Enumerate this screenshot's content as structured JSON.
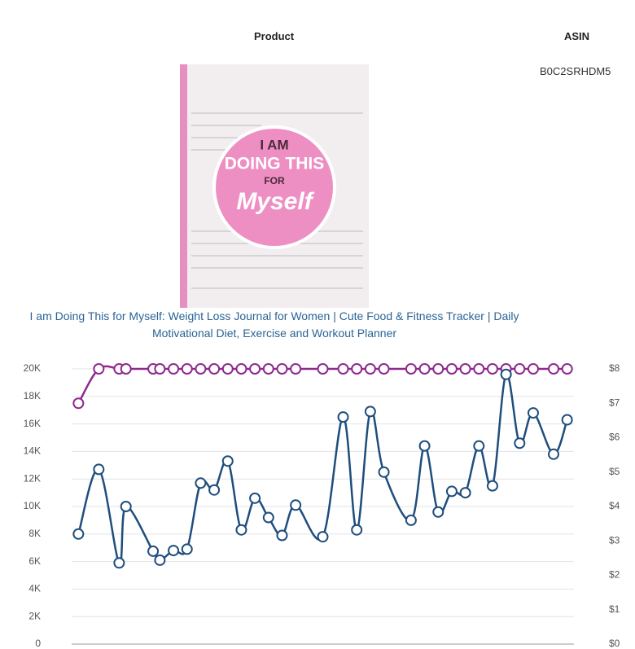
{
  "header": {
    "product": "Product",
    "asin": "ASIN"
  },
  "product": {
    "asin": "B0C2SRHDM5",
    "title": "I am Doing This for Myself: Weight Loss Journal for Women | Cute Food & Fitness Tracker | Daily Motivational Diet, Exercise and Workout Planner",
    "cover": {
      "line1": "I AM",
      "line2": "DOING THIS",
      "line3": "FOR",
      "line4": "Myself"
    }
  },
  "chart_data": {
    "type": "line",
    "x": [
      1,
      4,
      7,
      8,
      12,
      13,
      15,
      17,
      19,
      21,
      23,
      25,
      27,
      29,
      31,
      33,
      37,
      40,
      42,
      44,
      46,
      50,
      52,
      54,
      56,
      58,
      60,
      62,
      64,
      66,
      68,
      71,
      73
    ],
    "xlim": [
      0,
      74
    ],
    "ylim": [
      0,
      20000
    ],
    "yticks": [
      0,
      {
        "value": 2000,
        "label": "2K"
      },
      {
        "value": 4000,
        "label": "4K"
      },
      {
        "value": 6000,
        "label": "6K"
      },
      {
        "value": 8000,
        "label": "8K"
      },
      {
        "value": 10000,
        "label": "10K"
      },
      {
        "value": 12000,
        "label": "12K"
      },
      {
        "value": 14000,
        "label": "14K"
      },
      {
        "value": 16000,
        "label": "16K"
      },
      {
        "value": 18000,
        "label": "18K"
      },
      {
        "value": 20000,
        "label": "20K"
      }
    ],
    "y2lim": [
      0,
      8
    ],
    "y2ticks": [
      {
        "value": 0,
        "label": "$0"
      },
      {
        "value": 1,
        "label": "$1"
      },
      {
        "value": 2,
        "label": "$2"
      },
      {
        "value": 3,
        "label": "$3"
      },
      {
        "value": 4,
        "label": "$4"
      },
      {
        "value": 5,
        "label": "$5"
      },
      {
        "value": 6,
        "label": "$6"
      },
      {
        "value": 7,
        "label": "$7"
      },
      {
        "value": 8,
        "label": "$8"
      }
    ],
    "grid": true,
    "series": [
      {
        "color": "#1f4e7d",
        "values": [
          8000,
          12700,
          5900,
          10000,
          6750,
          6100,
          6800,
          6900,
          11700,
          11200,
          13300,
          8300,
          10600,
          9200,
          7900,
          10100,
          7800,
          16500,
          8300,
          16900,
          12500,
          9000,
          14400,
          9600,
          11100,
          11000,
          14400,
          11500,
          19600,
          14600,
          16800,
          13800,
          16300
        ]
      },
      {
        "color": "#8e2a8e",
        "axis": "y2",
        "values": [
          7,
          8,
          8,
          8,
          8,
          8,
          8,
          8,
          8,
          8,
          8,
          8,
          8,
          8,
          8,
          8,
          8,
          8,
          8,
          8,
          8,
          8,
          8,
          8,
          8,
          8,
          8,
          8,
          8,
          8,
          8,
          8,
          8
        ]
      }
    ]
  }
}
